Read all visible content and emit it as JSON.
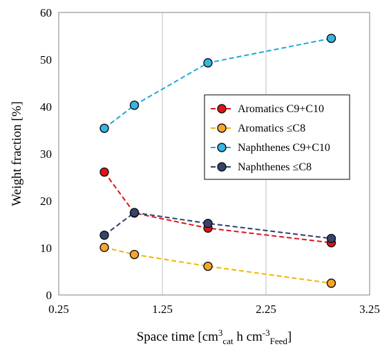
{
  "chart_data": {
    "type": "line",
    "xlabel": "Space time [cm",
    "xlabel_sup": "3",
    "xlabel_sub": "cat",
    "xlabel_mid": " h cm",
    "xlabel_sup2": "-3",
    "xlabel_sub2": "Feed",
    "xlabel_end": "]",
    "ylabel": "Weight fraction [%]",
    "xlim": [
      0.25,
      3.25
    ],
    "ylim": [
      0,
      60
    ],
    "x_ticks": [
      "0.25",
      "1.25",
      "2.25",
      "3.25"
    ],
    "x_tick_values": [
      0.25,
      1.25,
      2.25,
      3.25
    ],
    "y_ticks": [
      "0",
      "10",
      "20",
      "30",
      "40",
      "50",
      "60"
    ],
    "y_tick_values": [
      0,
      10,
      20,
      30,
      40,
      50,
      60
    ],
    "grid": "vertical",
    "legend_position": "center-right",
    "series": [
      {
        "name": "Aromatics C9+C10",
        "line_color": "#e0121b",
        "marker_color": "#e0121b",
        "x": [
          0.69,
          0.98,
          1.69,
          2.88
        ],
        "values": [
          26.1,
          17.4,
          14.2,
          11.1
        ]
      },
      {
        "name": "Aromatics ≤C8",
        "line_color": "#f5b400",
        "marker_color": "#f6a52c",
        "x": [
          0.69,
          0.98,
          1.69,
          2.88
        ],
        "values": [
          10.1,
          8.6,
          6.1,
          2.5
        ]
      },
      {
        "name": "Naphthenes C9+C10",
        "line_color": "#1ea8d8",
        "marker_color": "#34b6e4",
        "x": [
          0.69,
          0.98,
          1.69,
          2.88
        ],
        "values": [
          35.4,
          40.3,
          49.3,
          54.5
        ]
      },
      {
        "name": "Naphthenes ≤C8",
        "line_color": "#2c3e6b",
        "marker_color": "#35446e",
        "x": [
          0.69,
          0.98,
          1.69,
          2.88
        ],
        "values": [
          12.7,
          17.5,
          15.2,
          12.0
        ]
      }
    ]
  }
}
